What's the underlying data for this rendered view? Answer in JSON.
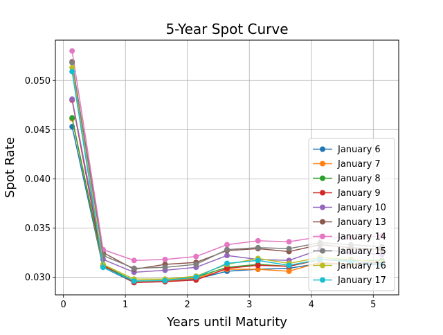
{
  "chart_data": {
    "type": "line",
    "title": "5-Year Spot Curve",
    "xlabel": "Years until Maturity",
    "ylabel": "Spot Rate",
    "xlim": [
      -0.13,
      5.41
    ],
    "ylim": [
      0.0282,
      0.0541
    ],
    "xticks": [
      0,
      1,
      2,
      3,
      4,
      5
    ],
    "xtick_labels": [
      "0",
      "1",
      "2",
      "3",
      "4",
      "5"
    ],
    "yticks": [
      0.03,
      0.035,
      0.04,
      0.045,
      0.05
    ],
    "ytick_labels": [
      "0.030",
      "0.035",
      "0.040",
      "0.045",
      "0.050"
    ],
    "grid": true,
    "legend_position": "lower-right",
    "x": [
      0.14,
      0.64,
      1.14,
      1.64,
      2.14,
      2.64,
      3.14,
      3.64,
      4.14,
      4.64,
      5.14
    ],
    "series": [
      {
        "name": "January 6",
        "color": "#1f77b4",
        "values": [
          0.0453,
          0.031,
          0.02945,
          0.02955,
          0.0298,
          0.0306,
          0.0308,
          0.0309,
          0.0314,
          0.0313,
          0.0313
        ]
      },
      {
        "name": "January 7",
        "color": "#ff7f0e",
        "values": [
          0.0461,
          0.0311,
          0.02955,
          0.02962,
          0.0299,
          0.0308,
          0.0308,
          0.0306,
          0.0315,
          0.0313,
          0.0315
        ]
      },
      {
        "name": "January 8",
        "color": "#2ca02c",
        "values": [
          0.0462,
          0.0312,
          0.02962,
          0.02968,
          0.03,
          0.031,
          0.0313,
          0.0311,
          0.0318,
          0.0317,
          0.0317
        ]
      },
      {
        "name": "January 9",
        "color": "#d62728",
        "values": [
          0.048,
          0.0312,
          0.02945,
          0.02955,
          0.0297,
          0.0309,
          0.0312,
          0.0311,
          0.0318,
          0.0316,
          0.0314
        ]
      },
      {
        "name": "January 10",
        "color": "#9467bd",
        "values": [
          0.0481,
          0.0318,
          0.0305,
          0.0307,
          0.031,
          0.0322,
          0.0318,
          0.0317,
          0.0328,
          0.0325,
          0.0323
        ]
      },
      {
        "name": "January 13",
        "color": "#8c564b",
        "values": [
          0.0519,
          0.0325,
          0.0308,
          0.0313,
          0.0315,
          0.0327,
          0.0329,
          0.0326,
          0.0333,
          0.033,
          0.0328
        ]
      },
      {
        "name": "January 14",
        "color": "#e377c2",
        "values": [
          0.053,
          0.0328,
          0.0317,
          0.0318,
          0.0321,
          0.0333,
          0.0337,
          0.0336,
          0.0341,
          0.034,
          0.0342
        ]
      },
      {
        "name": "January 15",
        "color": "#7f7f7f",
        "values": [
          0.0518,
          0.0322,
          0.0309,
          0.031,
          0.0313,
          0.0328,
          0.033,
          0.0329,
          0.0335,
          0.0333,
          0.0331
        ]
      },
      {
        "name": "January 16",
        "color": "#bcbd22",
        "values": [
          0.0513,
          0.0313,
          0.0298,
          0.0298,
          0.0301,
          0.0313,
          0.0319,
          0.0314,
          0.032,
          0.0318,
          0.0315
        ]
      },
      {
        "name": "January 17",
        "color": "#17becf",
        "values": [
          0.0509,
          0.031,
          0.0296,
          0.02965,
          0.03,
          0.0314,
          0.0317,
          0.0312,
          0.0318,
          0.0316,
          0.0313
        ]
      }
    ]
  }
}
